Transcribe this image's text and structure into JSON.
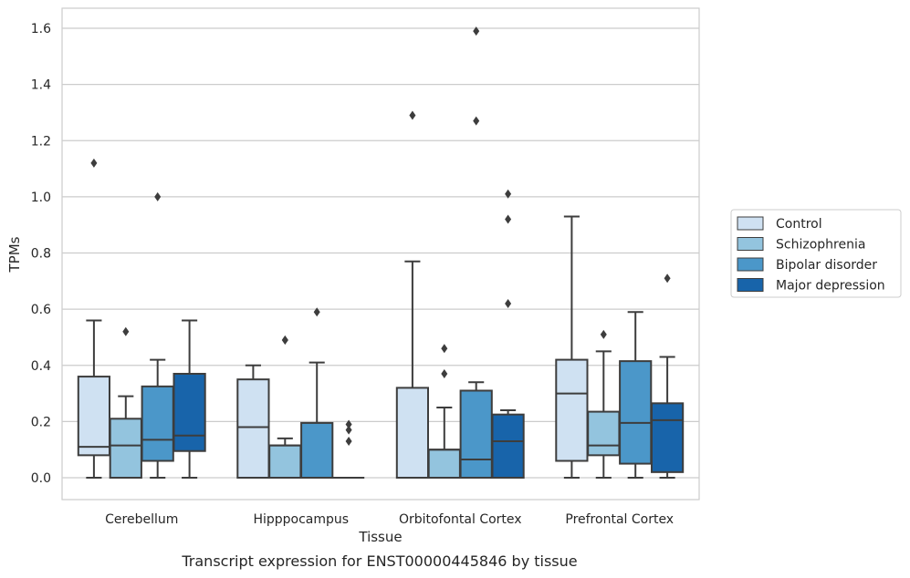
{
  "caption": "Transcript expression for ENST00000445846 by tissue",
  "colors": {
    "Control": "#cfe1f2",
    "Schizophrenia": "#93c4de",
    "Bipolar disorder": "#4b97c9",
    "Major depression": "#1864aa",
    "box_edge": "#3d3d3d",
    "grid": "#cccccc",
    "frame": "#cccccc"
  },
  "chart_data": {
    "type": "box",
    "xlabel": "Tissue",
    "ylabel": "TPMs",
    "ylim": [
      -0.08,
      1.67
    ],
    "yticks": [
      "0.0",
      "0.2",
      "0.4",
      "0.6",
      "0.8",
      "1.0",
      "1.2",
      "1.4",
      "1.6"
    ],
    "grid": "horizontal",
    "legend_position": "right",
    "categories": [
      "Cerebellum",
      "Hipppocampus",
      "Orbitofontal Cortex",
      "Prefrontal Cortex"
    ],
    "series": [
      {
        "name": "Control",
        "boxes": [
          {
            "whislo": 0.0,
            "q1": 0.08,
            "med": 0.11,
            "q3": 0.36,
            "whishi": 0.56,
            "fliers": [
              1.12
            ]
          },
          {
            "whislo": 0.0,
            "q1": 0.0,
            "med": 0.18,
            "q3": 0.35,
            "whishi": 0.4,
            "fliers": []
          },
          {
            "whislo": 0.0,
            "q1": 0.0,
            "med": 0.0,
            "q3": 0.32,
            "whishi": 0.77,
            "fliers": [
              1.29
            ]
          },
          {
            "whislo": 0.0,
            "q1": 0.06,
            "med": 0.3,
            "q3": 0.42,
            "whishi": 0.93,
            "fliers": []
          }
        ]
      },
      {
        "name": "Schizophrenia",
        "boxes": [
          {
            "whislo": 0.0,
            "q1": 0.0,
            "med": 0.115,
            "q3": 0.21,
            "whishi": 0.29,
            "fliers": [
              0.52
            ]
          },
          {
            "whislo": 0.0,
            "q1": 0.0,
            "med": 0.115,
            "q3": 0.115,
            "whishi": 0.14,
            "fliers": [
              0.49,
              0.49
            ]
          },
          {
            "whislo": 0.0,
            "q1": 0.0,
            "med": 0.1,
            "q3": 0.1,
            "whishi": 0.25,
            "fliers": [
              0.37,
              0.46
            ]
          },
          {
            "whislo": 0.0,
            "q1": 0.08,
            "med": 0.115,
            "q3": 0.235,
            "whishi": 0.45,
            "fliers": [
              0.51
            ]
          }
        ]
      },
      {
        "name": "Bipolar disorder",
        "boxes": [
          {
            "whislo": 0.0,
            "q1": 0.06,
            "med": 0.135,
            "q3": 0.325,
            "whishi": 0.42,
            "fliers": [
              1.0
            ]
          },
          {
            "whislo": 0.0,
            "q1": 0.0,
            "med": 0.0,
            "q3": 0.195,
            "whishi": 0.41,
            "fliers": [
              0.59
            ]
          },
          {
            "whislo": 0.0,
            "q1": 0.0,
            "med": 0.065,
            "q3": 0.31,
            "whishi": 0.34,
            "fliers": [
              1.27,
              1.59
            ]
          },
          {
            "whislo": 0.0,
            "q1": 0.05,
            "med": 0.195,
            "q3": 0.415,
            "whishi": 0.59,
            "fliers": []
          }
        ]
      },
      {
        "name": "Major depression",
        "boxes": [
          {
            "whislo": 0.0,
            "q1": 0.095,
            "med": 0.15,
            "q3": 0.37,
            "whishi": 0.56,
            "fliers": []
          },
          {
            "whislo": 0.0,
            "q1": 0.0,
            "med": 0.0,
            "q3": 0.0,
            "whishi": 0.0,
            "fliers": [
              0.13,
              0.17,
              0.19
            ]
          },
          {
            "whislo": 0.0,
            "q1": 0.0,
            "med": 0.13,
            "q3": 0.225,
            "whishi": 0.24,
            "fliers": [
              0.62,
              0.92,
              1.01
            ]
          },
          {
            "whislo": 0.0,
            "q1": 0.02,
            "med": 0.205,
            "q3": 0.265,
            "whishi": 0.43,
            "fliers": [
              0.71
            ]
          }
        ]
      }
    ]
  }
}
